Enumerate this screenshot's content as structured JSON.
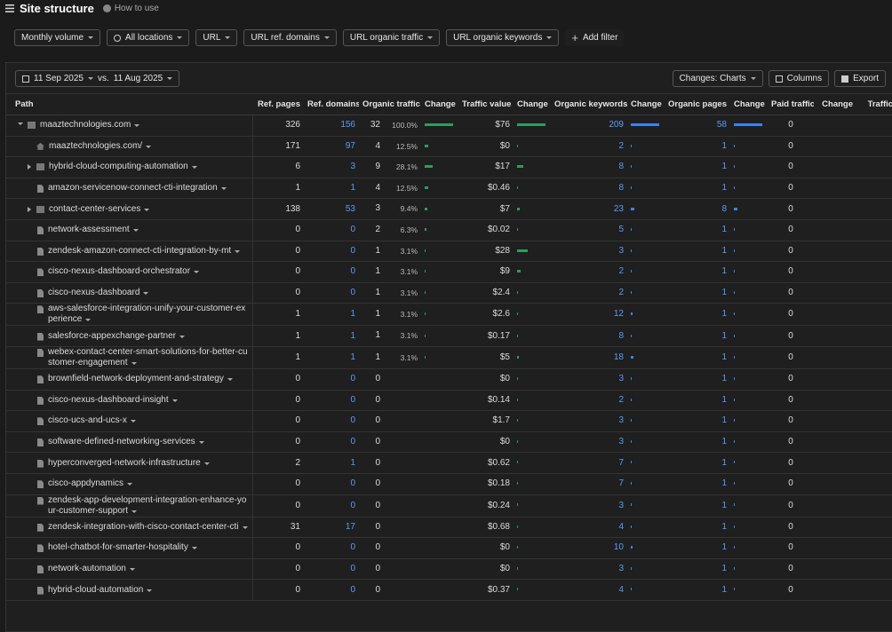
{
  "header": {
    "title": "Site structure",
    "help": "How to use"
  },
  "filters": [
    "Monthly volume",
    "All locations",
    "URL",
    "URL ref. domains",
    "URL organic traffic",
    "URL organic keywords"
  ],
  "add_filter": "Add filter",
  "toolbar": {
    "date_from": "11 Sep 2025",
    "vs": "vs.",
    "date_to": "11 Aug 2025",
    "changes": "Changes: Charts",
    "columns": "Columns",
    "export": "Export"
  },
  "table": {
    "columns": [
      "Path",
      "Ref. pages",
      "Ref. domains",
      "Organic traffic",
      "Change",
      "Traffic value",
      "Change",
      "Organic keywords",
      "Change",
      "Organic pages",
      "Change",
      "Paid traffic",
      "Change",
      "Traffic c"
    ],
    "rows": [
      {
        "path": "maaztechnologies.com",
        "icon": "folder",
        "toggle": "expanded",
        "level": 0,
        "ref_pages": 326,
        "ref_domains": 156,
        "organic_traffic": 32,
        "traffic_share": "100.0%",
        "traffic_value": "$76",
        "organic_keywords": 209,
        "organic_pages": 58,
        "paid_traffic": 0
      },
      {
        "path": "maaztechnologies.com/",
        "icon": "home",
        "toggle": null,
        "level": 1,
        "ref_pages": 171,
        "ref_domains": 97,
        "organic_traffic": 4,
        "traffic_share": "12.5%",
        "traffic_value": "$0",
        "organic_keywords": 2,
        "organic_pages": 1,
        "paid_traffic": 0
      },
      {
        "path": "hybrid-cloud-computing-automation",
        "icon": "folder",
        "toggle": "collapsed",
        "level": 1,
        "ref_pages": 6,
        "ref_domains": 3,
        "organic_traffic": 9,
        "traffic_share": "28.1%",
        "traffic_value": "$17",
        "organic_keywords": 8,
        "organic_pages": 1,
        "paid_traffic": 0
      },
      {
        "path": "amazon-servicenow-connect-cti-integration",
        "icon": "file",
        "toggle": null,
        "level": 1,
        "ref_pages": 1,
        "ref_domains": 1,
        "organic_traffic": 4,
        "traffic_share": "12.5%",
        "traffic_value": "$0.46",
        "organic_keywords": 8,
        "organic_pages": 1,
        "paid_traffic": 0
      },
      {
        "path": "contact-center-services",
        "icon": "folder",
        "toggle": "collapsed",
        "level": 1,
        "ref_pages": 138,
        "ref_domains": 53,
        "organic_traffic": 3,
        "traffic_share": "9.4%",
        "traffic_value": "$7",
        "organic_keywords": 23,
        "organic_pages": 8,
        "paid_traffic": 0
      },
      {
        "path": "network-assessment",
        "icon": "file",
        "toggle": null,
        "level": 1,
        "ref_pages": 0,
        "ref_domains": 0,
        "organic_traffic": 2,
        "traffic_share": "6.3%",
        "traffic_value": "$0.02",
        "organic_keywords": 5,
        "organic_pages": 1,
        "paid_traffic": 0
      },
      {
        "path": "zendesk-amazon-connect-cti-integration-by-mt",
        "icon": "file",
        "toggle": null,
        "level": 1,
        "ref_pages": 0,
        "ref_domains": 0,
        "organic_traffic": 1,
        "traffic_share": "3.1%",
        "traffic_value": "$28",
        "organic_keywords": 3,
        "organic_pages": 1,
        "paid_traffic": 0
      },
      {
        "path": "cisco-nexus-dashboard-orchestrator",
        "icon": "file",
        "toggle": null,
        "level": 1,
        "ref_pages": 0,
        "ref_domains": 0,
        "organic_traffic": 1,
        "traffic_share": "3.1%",
        "traffic_value": "$9",
        "organic_keywords": 2,
        "organic_pages": 1,
        "paid_traffic": 0
      },
      {
        "path": "cisco-nexus-dashboard",
        "icon": "file",
        "toggle": null,
        "level": 1,
        "ref_pages": 0,
        "ref_domains": 0,
        "organic_traffic": 1,
        "traffic_share": "3.1%",
        "traffic_value": "$2.4",
        "organic_keywords": 2,
        "organic_pages": 1,
        "paid_traffic": 0
      },
      {
        "path": "aws-salesforce-integration-unify-your-customer-experience",
        "icon": "file",
        "toggle": null,
        "level": 1,
        "ref_pages": 1,
        "ref_domains": 1,
        "organic_traffic": 1,
        "traffic_share": "3.1%",
        "traffic_value": "$2.6",
        "organic_keywords": 12,
        "organic_pages": 1,
        "paid_traffic": 0
      },
      {
        "path": "salesforce-appexchange-partner",
        "icon": "file",
        "toggle": null,
        "level": 1,
        "ref_pages": 1,
        "ref_domains": 1,
        "organic_traffic": 1,
        "traffic_share": "3.1%",
        "traffic_value": "$0.17",
        "organic_keywords": 8,
        "organic_pages": 1,
        "paid_traffic": 0
      },
      {
        "path": "webex-contact-center-smart-solutions-for-better-customer-engagement",
        "icon": "file",
        "toggle": null,
        "level": 1,
        "ref_pages": 1,
        "ref_domains": 1,
        "organic_traffic": 1,
        "traffic_share": "3.1%",
        "traffic_value": "$5",
        "organic_keywords": 18,
        "organic_pages": 1,
        "paid_traffic": 0
      },
      {
        "path": "brownfield-network-deployment-and-strategy",
        "icon": "file",
        "toggle": null,
        "level": 1,
        "ref_pages": 0,
        "ref_domains": 0,
        "organic_traffic": 0,
        "traffic_share": null,
        "traffic_value": "$0",
        "organic_keywords": 3,
        "organic_pages": 1,
        "paid_traffic": 0
      },
      {
        "path": "cisco-nexus-dashboard-insight",
        "icon": "file",
        "toggle": null,
        "level": 1,
        "ref_pages": 0,
        "ref_domains": 0,
        "organic_traffic": 0,
        "traffic_share": null,
        "traffic_value": "$0.14",
        "organic_keywords": 2,
        "organic_pages": 1,
        "paid_traffic": 0
      },
      {
        "path": "cisco-ucs-and-ucs-x",
        "icon": "file",
        "toggle": null,
        "level": 1,
        "ref_pages": 0,
        "ref_domains": 0,
        "organic_traffic": 0,
        "traffic_share": null,
        "traffic_value": "$1.7",
        "organic_keywords": 3,
        "organic_pages": 1,
        "paid_traffic": 0
      },
      {
        "path": "software-defined-networking-services",
        "icon": "file",
        "toggle": null,
        "level": 1,
        "ref_pages": 0,
        "ref_domains": 0,
        "organic_traffic": 0,
        "traffic_share": null,
        "traffic_value": "$0",
        "organic_keywords": 3,
        "organic_pages": 1,
        "paid_traffic": 0
      },
      {
        "path": "hyperconverged-network-infrastructure",
        "icon": "file",
        "toggle": null,
        "level": 1,
        "ref_pages": 2,
        "ref_domains": 1,
        "organic_traffic": 0,
        "traffic_share": null,
        "traffic_value": "$0.62",
        "organic_keywords": 7,
        "organic_pages": 1,
        "paid_traffic": 0
      },
      {
        "path": "cisco-appdynamics",
        "icon": "file",
        "toggle": null,
        "level": 1,
        "ref_pages": 0,
        "ref_domains": 0,
        "organic_traffic": 0,
        "traffic_share": null,
        "traffic_value": "$0.18",
        "organic_keywords": 7,
        "organic_pages": 1,
        "paid_traffic": 0
      },
      {
        "path": "zendesk-app-development-integration-enhance-your-customer-support",
        "icon": "file",
        "toggle": null,
        "level": 1,
        "ref_pages": 0,
        "ref_domains": 0,
        "organic_traffic": 0,
        "traffic_share": null,
        "traffic_value": "$0.24",
        "organic_keywords": 3,
        "organic_pages": 1,
        "paid_traffic": 0
      },
      {
        "path": "zendesk-integration-with-cisco-contact-center-cti",
        "icon": "file",
        "toggle": null,
        "level": 1,
        "ref_pages": 31,
        "ref_domains": 17,
        "organic_traffic": 0,
        "traffic_share": null,
        "traffic_value": "$0.68",
        "organic_keywords": 4,
        "organic_pages": 1,
        "paid_traffic": 0
      },
      {
        "path": "hotel-chatbot-for-smarter-hospitality",
        "icon": "file",
        "toggle": null,
        "level": 1,
        "ref_pages": 0,
        "ref_domains": 0,
        "organic_traffic": 0,
        "traffic_share": null,
        "traffic_value": "$0",
        "organic_keywords": 10,
        "organic_pages": 1,
        "paid_traffic": 0
      },
      {
        "path": "network-automation",
        "icon": "file",
        "toggle": null,
        "level": 1,
        "ref_pages": 0,
        "ref_domains": 0,
        "organic_traffic": 0,
        "traffic_share": null,
        "traffic_value": "$0",
        "organic_keywords": 3,
        "organic_pages": 1,
        "paid_traffic": 0
      },
      {
        "path": "hybrid-cloud-automation",
        "icon": "file",
        "toggle": null,
        "level": 1,
        "ref_pages": 0,
        "ref_domains": 0,
        "organic_traffic": 0,
        "traffic_share": null,
        "traffic_value": "$0.37",
        "organic_keywords": 4,
        "organic_pages": 1,
        "paid_traffic": 0
      }
    ]
  }
}
